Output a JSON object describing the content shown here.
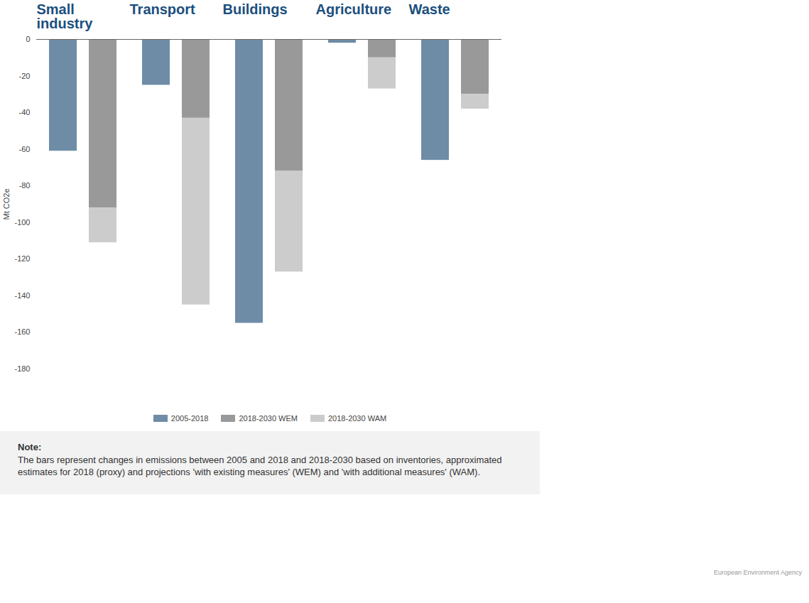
{
  "chart_data": {
    "type": "bar",
    "stacked": true,
    "y_label": "Mt CO2e",
    "categories": [
      "Small industry",
      "Transport",
      "Buildings",
      "Agriculture",
      "Waste"
    ],
    "series": [
      {
        "name": "2005-2018",
        "color": "#6e8ca6",
        "values": [
          -61,
          -25,
          -155,
          -2,
          -66
        ]
      },
      {
        "name": "2018-2030 WEM",
        "color": "#999999",
        "values": [
          -92,
          -43,
          -72,
          -10,
          -30
        ]
      },
      {
        "name": "2018-2030 WAM",
        "color": "#cccccc",
        "values": [
          -19,
          -102,
          -55,
          -17,
          -8
        ]
      }
    ],
    "ylim": [
      -180,
      0
    ],
    "yticks": [
      0,
      -20,
      -40,
      -60,
      -80,
      -100,
      -120,
      -140,
      -160,
      -180
    ],
    "grid": false,
    "legend": "bottom",
    "annotations": {
      "note_title": "Note:",
      "note": "The bars represent changes in emissions between 2005 and 2018 and 2018-2030 based on inventories, approximated estimates for 2018 (proxy) and projections 'with existing measures' (WEM) and 'with additional measures' (WAM).",
      "credit": "European Environment Agency"
    }
  }
}
